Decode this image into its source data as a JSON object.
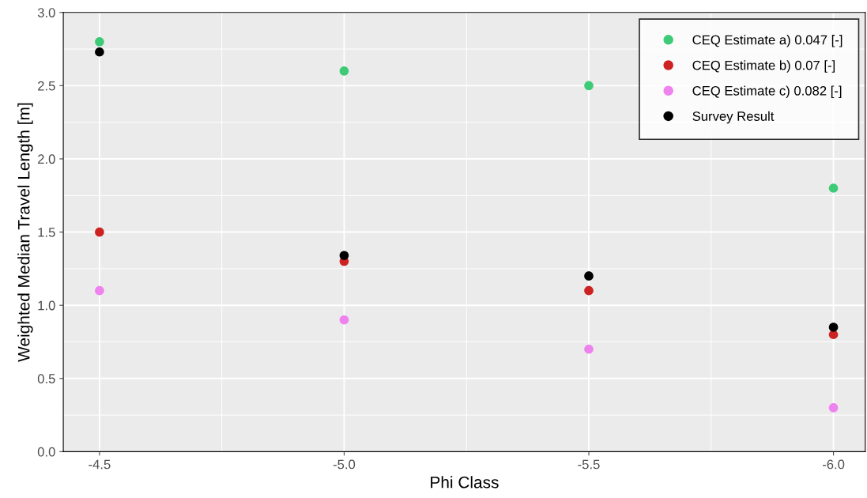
{
  "chart_data": {
    "type": "scatter",
    "xlabel": "Phi Class",
    "ylabel": "Weighted Median Travel Length [m]",
    "x": [
      -4.5,
      -5.0,
      -5.5,
      -6.0
    ],
    "xlim": [
      -4.426,
      -6.065
    ],
    "xticks": [
      {
        "value": -4.5,
        "label": "-4.5"
      },
      {
        "value": -5.0,
        "label": "-5.0"
      },
      {
        "value": -5.5,
        "label": "-5.5"
      },
      {
        "value": -6.0,
        "label": "-6.0"
      }
    ],
    "ylim": [
      0,
      3
    ],
    "yticks": [
      {
        "value": 0,
        "label": "0.0"
      },
      {
        "value": 0.5,
        "label": "0.5"
      },
      {
        "value": 1,
        "label": "1.0"
      },
      {
        "value": 1.5,
        "label": "1.5"
      },
      {
        "value": 2,
        "label": "2.0"
      },
      {
        "value": 2.5,
        "label": "2.5"
      },
      {
        "value": 3,
        "label": "3.0"
      }
    ],
    "grid": true,
    "legend": "top right",
    "marker": "circle",
    "series": [
      {
        "name": "CEQ Estimate a) 0.047 [-]",
        "color": "#3ecb78",
        "values": [
          2.8,
          2.6,
          2.5,
          1.8
        ]
      },
      {
        "name": "CEQ Estimate b) 0.07 [-]",
        "color": "#cc2222",
        "values": [
          1.5,
          1.3,
          1.1,
          0.8
        ]
      },
      {
        "name": "CEQ Estimate c) 0.082 [-]",
        "color": "#ee82ee",
        "values": [
          1.1,
          0.9,
          0.7,
          0.3
        ]
      },
      {
        "name": "Survey Result",
        "color": "#000000",
        "values": [
          2.73,
          1.34,
          1.2,
          0.85
        ]
      }
    ]
  }
}
